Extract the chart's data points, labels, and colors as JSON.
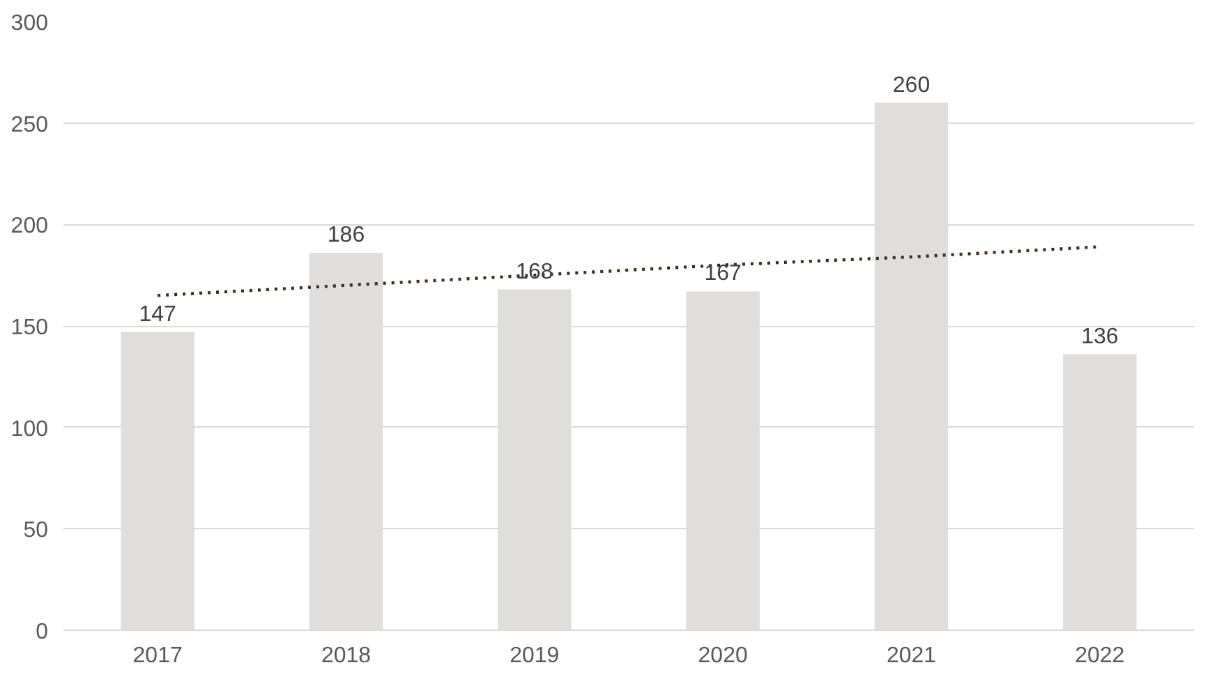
{
  "chart_data": {
    "type": "bar",
    "categories": [
      "2017",
      "2018",
      "2019",
      "2020",
      "2021",
      "2022"
    ],
    "series": [
      {
        "color": "#e0dedd",
        "values": [
          147,
          186,
          168,
          167,
          260,
          136
        ],
        "value_labels": [
          "147",
          "186",
          "168",
          "167",
          "260",
          "136"
        ]
      },
      {
        "type": "line",
        "color": "#3b2a20",
        "line_style": "dotted",
        "values": [
          165,
          170,
          175,
          180,
          184,
          189
        ]
      }
    ],
    "ylim": [
      0,
      300
    ],
    "yticks": [
      0,
      50,
      100,
      150,
      200,
      250,
      300
    ],
    "grid": "y"
  }
}
